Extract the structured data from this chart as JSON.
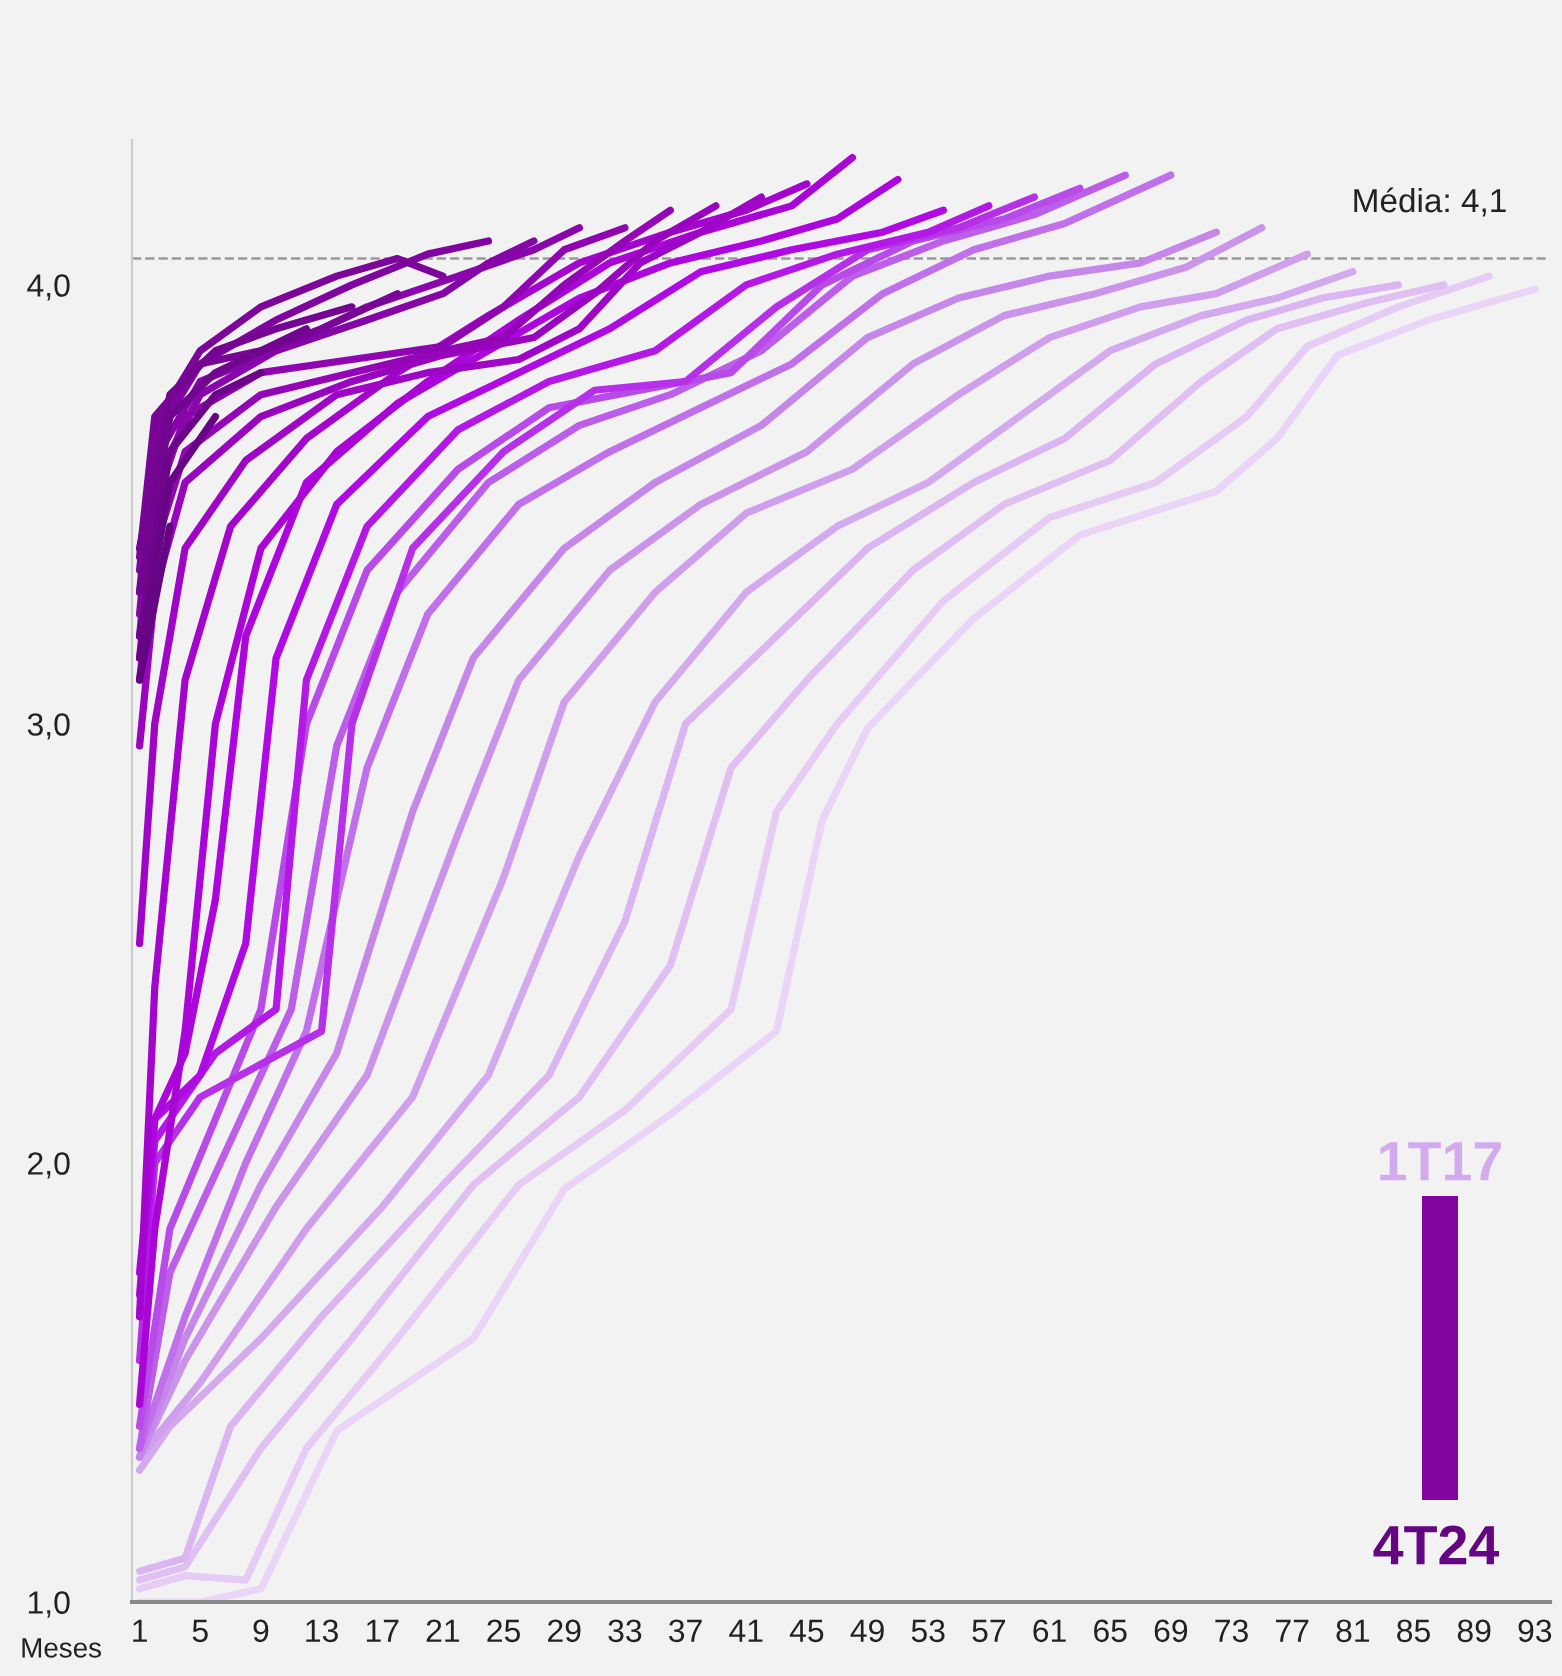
{
  "chart_data": {
    "type": "line",
    "xlabel": "Meses",
    "xlim": [
      0.5,
      94
    ],
    "xticks": [
      1,
      5,
      9,
      13,
      17,
      21,
      25,
      29,
      33,
      37,
      41,
      45,
      49,
      53,
      57,
      61,
      65,
      69,
      73,
      77,
      81,
      85,
      89,
      93
    ],
    "ylim": [
      1,
      4.33
    ],
    "yticks": [
      {
        "value": 1,
        "label": "1,0"
      },
      {
        "value": 2,
        "label": "2,0"
      },
      {
        "value": 3,
        "label": "3,0"
      },
      {
        "value": 4,
        "label": "4,0"
      }
    ],
    "grid": false,
    "legend": false,
    "marker": "none",
    "line_style": "solid",
    "ref_lines": [
      {
        "axis": "y",
        "value": 4.06,
        "label": "Média: 4,1",
        "color": "#999999",
        "line_style": "dashed"
      }
    ],
    "annotations": [
      "1T17",
      "4T24"
    ],
    "series": [
      {
        "color": "#ead4f7",
        "x": [
          1,
          5,
          9,
          14,
          23,
          29,
          36,
          43,
          46,
          49,
          56,
          63,
          72,
          76,
          80,
          86,
          89,
          93
        ],
        "values": [
          1.0,
          1.0,
          1.03,
          1.39,
          1.6,
          1.94,
          2.11,
          2.3,
          2.78,
          2.99,
          3.24,
          3.43,
          3.53,
          3.65,
          3.84,
          3.92,
          3.95,
          3.99
        ]
      },
      {
        "color": "#e6cbf5",
        "x": [
          1,
          4,
          8,
          12,
          18,
          26,
          33,
          40,
          43,
          47,
          54,
          61,
          68,
          74,
          78,
          84,
          90
        ],
        "values": [
          1.03,
          1.06,
          1.05,
          1.35,
          1.6,
          1.95,
          2.12,
          2.35,
          2.8,
          3.0,
          3.28,
          3.47,
          3.55,
          3.7,
          3.86,
          3.95,
          4.02
        ]
      },
      {
        "color": "#e0c0f3",
        "x": [
          1,
          4,
          9,
          15,
          23,
          30,
          36,
          40,
          45,
          52,
          58,
          65,
          71,
          76,
          82,
          87
        ],
        "values": [
          1.05,
          1.08,
          1.35,
          1.6,
          1.95,
          2.15,
          2.45,
          2.9,
          3.1,
          3.35,
          3.5,
          3.6,
          3.78,
          3.9,
          3.96,
          4.0
        ]
      },
      {
        "color": "#dab5f1",
        "x": [
          1,
          4,
          7,
          13,
          21,
          28,
          33,
          37,
          43,
          49,
          56,
          62,
          68,
          74,
          79,
          84
        ],
        "values": [
          1.07,
          1.1,
          1.4,
          1.65,
          1.95,
          2.2,
          2.55,
          3.0,
          3.2,
          3.4,
          3.55,
          3.65,
          3.82,
          3.92,
          3.97,
          4.0
        ]
      },
      {
        "color": "#d4aaef",
        "x": [
          1,
          3,
          9,
          17,
          24,
          30,
          35,
          41,
          47,
          53,
          59,
          65,
          71,
          76,
          81
        ],
        "values": [
          1.3,
          1.4,
          1.6,
          1.9,
          2.2,
          2.7,
          3.05,
          3.3,
          3.45,
          3.55,
          3.7,
          3.85,
          3.93,
          3.97,
          4.03
        ]
      },
      {
        "color": "#cf9fed",
        "x": [
          1,
          5,
          12,
          19,
          25,
          29,
          35,
          41,
          48,
          55,
          61,
          67,
          72,
          78
        ],
        "values": [
          1.33,
          1.5,
          1.85,
          2.15,
          2.65,
          3.05,
          3.3,
          3.48,
          3.58,
          3.75,
          3.88,
          3.95,
          3.98,
          4.07
        ]
      },
      {
        "color": "#ca94eb",
        "x": [
          1,
          4,
          10,
          16,
          22,
          26,
          32,
          38,
          45,
          52,
          58,
          64,
          70,
          75
        ],
        "values": [
          1.33,
          1.55,
          1.9,
          2.2,
          2.75,
          3.1,
          3.35,
          3.5,
          3.62,
          3.82,
          3.93,
          3.98,
          4.04,
          4.13
        ]
      },
      {
        "color": "#c588ea",
        "x": [
          1,
          4,
          9,
          14,
          19,
          23,
          29,
          35,
          42,
          49,
          55,
          61,
          67,
          72
        ],
        "values": [
          1.33,
          1.6,
          1.95,
          2.25,
          2.8,
          3.15,
          3.4,
          3.55,
          3.68,
          3.88,
          3.97,
          4.02,
          4.05,
          4.12
        ]
      },
      {
        "color": "#c070ea",
        "x": [
          1,
          4,
          8,
          12,
          16,
          20,
          26,
          32,
          38,
          44,
          50,
          56,
          62,
          69
        ],
        "values": [
          1.35,
          1.65,
          2.0,
          2.3,
          2.9,
          3.25,
          3.5,
          3.62,
          3.72,
          3.82,
          3.98,
          4.08,
          4.14,
          4.25
        ]
      },
      {
        "color": "#bc5ee9",
        "x": [
          1,
          3,
          7,
          11,
          14,
          18,
          24,
          30,
          36,
          42,
          48,
          54,
          60,
          66
        ],
        "values": [
          1.35,
          1.75,
          2.05,
          2.35,
          2.95,
          3.3,
          3.55,
          3.68,
          3.75,
          3.85,
          4.02,
          4.1,
          4.16,
          4.25
        ]
      },
      {
        "color": "#b84ae9",
        "x": [
          1,
          3,
          6,
          9,
          12,
          16,
          22,
          28,
          34,
          40,
          46,
          52,
          58,
          63
        ],
        "values": [
          1.4,
          1.85,
          2.1,
          2.35,
          3.0,
          3.35,
          3.58,
          3.72,
          3.76,
          3.8,
          4.0,
          4.1,
          4.15,
          4.22
        ]
      },
      {
        "color": "#b530e8",
        "x": [
          1,
          2,
          5,
          13,
          15,
          19,
          25,
          31,
          37,
          43,
          49,
          55,
          60
        ],
        "values": [
          1.55,
          2.0,
          2.15,
          2.3,
          3.0,
          3.4,
          3.62,
          3.76,
          3.78,
          3.95,
          4.08,
          4.13,
          4.2
        ]
      },
      {
        "color": "#b318e6",
        "x": [
          1,
          2,
          6,
          10,
          12,
          16,
          22,
          28,
          35,
          41,
          47,
          53,
          57
        ],
        "values": [
          1.65,
          2.05,
          2.25,
          2.35,
          3.1,
          3.45,
          3.67,
          3.78,
          3.85,
          4.0,
          4.07,
          4.12,
          4.18
        ]
      },
      {
        "color": "#b00ae4",
        "x": [
          1,
          2,
          5,
          8,
          10,
          14,
          20,
          26,
          32,
          38,
          44,
          50,
          54
        ],
        "values": [
          1.7,
          2.1,
          2.2,
          2.5,
          3.15,
          3.5,
          3.7,
          3.8,
          3.9,
          4.03,
          4.08,
          4.12,
          4.17
        ]
      },
      {
        "color": "#ac05de",
        "x": [
          1,
          2,
          4,
          6,
          8,
          12,
          18,
          24,
          30,
          36,
          42,
          47,
          51
        ],
        "values": [
          1.75,
          2.1,
          2.25,
          2.6,
          3.2,
          3.55,
          3.73,
          3.85,
          3.97,
          4.05,
          4.1,
          4.15,
          4.24
        ]
      },
      {
        "color": "#a805d6",
        "x": [
          1,
          2,
          4,
          6,
          9,
          14,
          20,
          26,
          32,
          38,
          44,
          48
        ],
        "values": [
          1.45,
          1.85,
          2.3,
          3.0,
          3.4,
          3.62,
          3.78,
          3.92,
          4.05,
          4.12,
          4.18,
          4.29
        ]
      },
      {
        "color": "#a305ce",
        "x": [
          1,
          2,
          4,
          7,
          12,
          18,
          24,
          30,
          36,
          41,
          45
        ],
        "values": [
          1.65,
          2.4,
          3.1,
          3.45,
          3.65,
          3.8,
          3.93,
          4.05,
          4.12,
          4.17,
          4.23
        ]
      },
      {
        "color": "#9e05c6",
        "x": [
          1,
          2,
          4,
          8,
          14,
          20,
          26,
          30,
          34,
          38,
          42
        ],
        "values": [
          2.5,
          3.0,
          3.4,
          3.6,
          3.75,
          3.8,
          3.83,
          3.9,
          4.05,
          4.12,
          4.2
        ]
      },
      {
        "color": "#9905be",
        "x": [
          1,
          2,
          4,
          9,
          15,
          21,
          27,
          31,
          35,
          39
        ],
        "values": [
          2.95,
          3.3,
          3.55,
          3.7,
          3.78,
          3.84,
          3.88,
          3.98,
          4.1,
          4.18
        ]
      },
      {
        "color": "#9405b8",
        "x": [
          1,
          2,
          4,
          9,
          15,
          21,
          25,
          29,
          33,
          36
        ],
        "values": [
          3.1,
          3.4,
          3.62,
          3.75,
          3.8,
          3.85,
          3.88,
          4.0,
          4.1,
          4.17
        ]
      },
      {
        "color": "#8f05b2",
        "x": [
          1,
          2,
          4,
          9,
          15,
          21,
          25,
          29,
          33
        ],
        "values": [
          3.15,
          3.5,
          3.7,
          3.8,
          3.83,
          3.86,
          3.95,
          4.08,
          4.13
        ]
      },
      {
        "color": "#8a05ac",
        "x": [
          1,
          2,
          5,
          10,
          16,
          22,
          27,
          30
        ],
        "values": [
          3.2,
          3.55,
          3.75,
          3.85,
          3.95,
          4.02,
          4.08,
          4.13
        ]
      },
      {
        "color": "#8505a6",
        "x": [
          1,
          2,
          5,
          10,
          16,
          21,
          24,
          27
        ],
        "values": [
          3.25,
          3.6,
          3.78,
          3.85,
          3.92,
          3.98,
          4.05,
          4.1
        ]
      },
      {
        "color": "#8005a0",
        "x": [
          1,
          2,
          5,
          10,
          15,
          20,
          24
        ],
        "values": [
          3.3,
          3.65,
          3.82,
          3.92,
          4.0,
          4.07,
          4.1
        ]
      },
      {
        "color": "#7c059a",
        "x": [
          1,
          2,
          5,
          9,
          14,
          18,
          21
        ],
        "values": [
          3.35,
          3.68,
          3.85,
          3.95,
          4.02,
          4.06,
          4.02
        ]
      },
      {
        "color": "#780596",
        "x": [
          1,
          2,
          5,
          9,
          13,
          18
        ],
        "values": [
          3.38,
          3.7,
          3.82,
          3.85,
          3.9,
          3.98
        ]
      },
      {
        "color": "#740592",
        "x": [
          1,
          3,
          6,
          10,
          15
        ],
        "values": [
          3.4,
          3.75,
          3.85,
          3.9,
          3.95
        ]
      },
      {
        "color": "#70058e",
        "x": [
          1,
          3,
          6,
          9,
          12
        ],
        "values": [
          3.3,
          3.7,
          3.8,
          3.85,
          3.9
        ]
      },
      {
        "color": "#6c058a",
        "x": [
          1,
          3,
          6,
          9
        ],
        "values": [
          3.2,
          3.62,
          3.75,
          3.8
        ]
      },
      {
        "color": "#680586",
        "x": [
          1,
          3,
          6
        ],
        "values": [
          3.15,
          3.55,
          3.7
        ]
      },
      {
        "color": "#640582",
        "x": [
          1,
          3
        ],
        "values": [
          3.1,
          3.45
        ]
      }
    ]
  }
}
